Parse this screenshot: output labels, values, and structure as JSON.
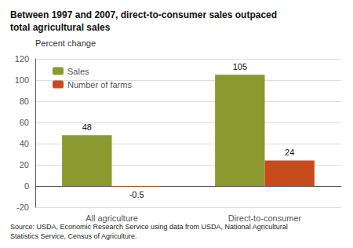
{
  "chart_data": {
    "type": "bar",
    "title": "Between 1997 and 2007, direct-to-consumer sales outpaced\ntotal agricultural sales",
    "ylabel": "Percent change",
    "categories": [
      "All agriculture",
      "Direct-to-consumer"
    ],
    "series": [
      {
        "name": "Sales",
        "color": "#8b9a2e",
        "values": [
          48,
          105
        ]
      },
      {
        "name": "Number of farms",
        "color": "#c84b1e",
        "values": [
          -0.5,
          24
        ]
      }
    ],
    "ylim": [
      -20,
      120
    ],
    "yticks": [
      -20,
      0,
      20,
      40,
      60,
      80,
      100,
      120
    ],
    "grid": true,
    "legend": "upper left",
    "data_labels": true,
    "source": "Source: USDA, Economic Research Service using data from USDA, National Agricultural\nStatistics Service, Census of Agriculture."
  }
}
